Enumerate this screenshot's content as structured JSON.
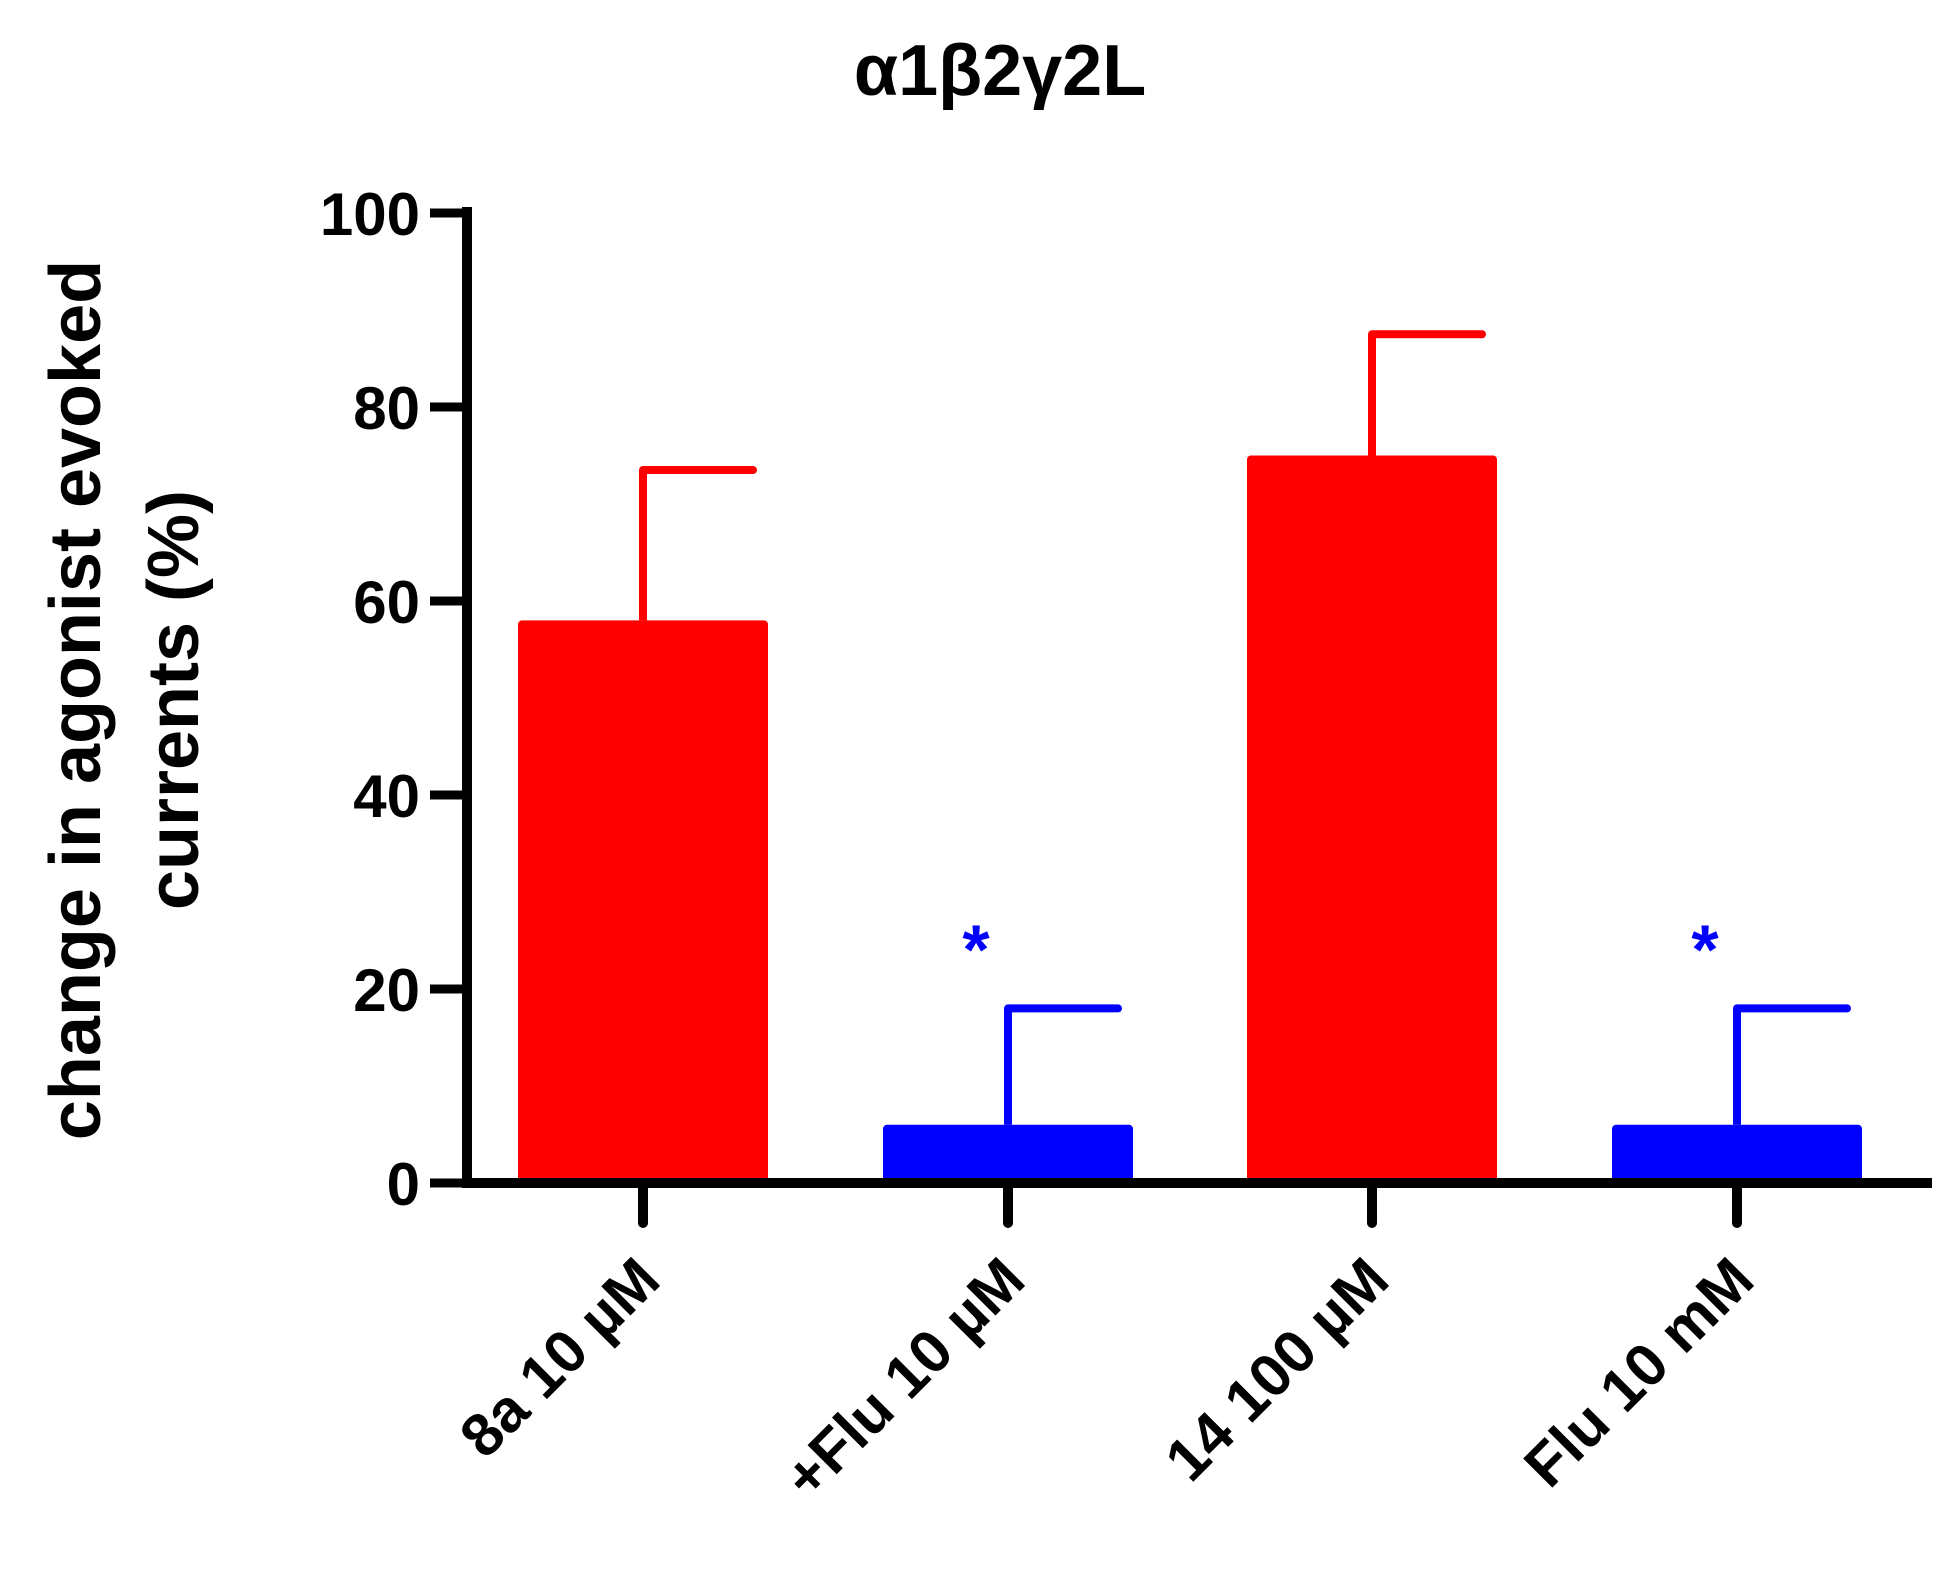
{
  "chart_data": {
    "type": "bar",
    "title": "α1β2γ2L",
    "ylabel_lines": [
      "change in agonist evoked",
      "currents (%)"
    ],
    "xlabel": "",
    "categories": [
      "8a 10  µM",
      "+Flu  10  µM",
      "14 100  µM",
      "Flu 10  mM"
    ],
    "values": [
      58,
      6,
      75,
      6
    ],
    "errors": [
      15.5,
      12,
      12.5,
      12
    ],
    "bar_colors": [
      "#ff0000",
      "#0000ff",
      "#ff0000",
      "#0000ff"
    ],
    "annotations": [
      "",
      "*",
      "",
      "*"
    ],
    "annotation_color": "#0000ff",
    "ylim": [
      0,
      100
    ],
    "yticks": [
      0,
      20,
      40,
      60,
      80,
      100
    ],
    "grid": false
  }
}
